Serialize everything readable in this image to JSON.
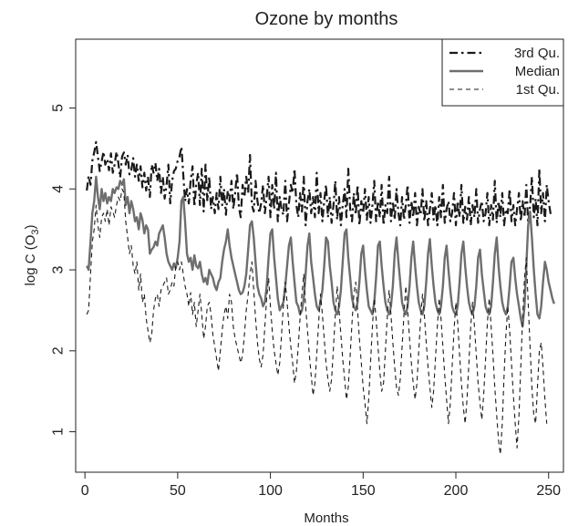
{
  "chart_data": {
    "type": "line",
    "title": "Ozone by months",
    "xlabel": "Months",
    "ylabel": {
      "main": "log C (O",
      "sub": "3",
      "close": ")"
    },
    "xlim": [
      -5,
      258
    ],
    "ylim": [
      0.5,
      5.85
    ],
    "x_ticks": [
      0,
      50,
      100,
      150,
      200,
      250
    ],
    "y_ticks": [
      1,
      2,
      3,
      4,
      5
    ],
    "grid": false,
    "legend_position": "top-right",
    "series": [
      {
        "name": "3rd Qu.",
        "color": "#1a1a1a",
        "style": "dash-dot",
        "values": [
          3.98,
          4.16,
          4.05,
          4.35,
          4.45,
          4.58,
          4.4,
          4.22,
          4.34,
          4.46,
          4.3,
          4.37,
          4.23,
          4.44,
          4.2,
          4.3,
          4.46,
          4.32,
          4.14,
          4.4,
          4.45,
          4.3,
          4.42,
          4.18,
          4.23,
          4.38,
          4.15,
          4.3,
          4.1,
          4.28,
          4.02,
          4.2,
          3.98,
          4.15,
          3.9,
          4.3,
          4.2,
          4.32,
          4.1,
          4.25,
          3.95,
          4.15,
          3.88,
          4.05,
          4.3,
          3.82,
          4.1,
          4.22,
          4.25,
          4.35,
          4.4,
          4.52,
          4.18,
          3.85,
          4.0,
          3.82,
          4.1,
          4.28,
          3.78,
          4.05,
          4.2,
          3.8,
          4.25,
          3.72,
          4.3,
          3.85,
          4.15,
          3.75,
          3.9,
          3.7,
          3.95,
          3.75,
          4.15,
          3.8,
          4.0,
          3.68,
          3.98,
          3.85,
          4.1,
          3.75,
          3.95,
          4.2,
          3.78,
          3.65,
          4.05,
          3.9,
          4.15,
          3.95,
          4.42,
          3.8,
          3.72,
          4.1,
          3.85,
          3.7,
          3.82,
          4.05,
          3.7,
          3.9,
          4.15,
          3.65,
          4.05,
          3.75,
          4.2,
          3.6,
          3.9,
          3.75,
          3.68,
          4.1,
          3.6,
          3.82,
          4.05,
          3.95,
          4.25,
          3.8,
          3.65,
          3.95,
          3.72,
          4.15,
          3.55,
          3.85,
          4.0,
          3.7,
          3.9,
          3.65,
          4.2,
          3.7,
          3.95,
          3.6,
          3.85,
          4.05,
          3.65,
          3.9,
          3.58,
          3.8,
          4.1,
          3.62,
          3.9,
          3.55,
          3.8,
          4.0,
          3.65,
          4.25,
          3.75,
          3.6,
          3.95,
          3.68,
          4.05,
          3.55,
          3.85,
          3.7,
          4.0,
          3.62,
          3.9,
          3.58,
          3.8,
          4.1,
          3.6,
          3.85,
          3.65,
          4.05,
          3.55,
          3.8,
          3.7,
          4.15,
          3.6,
          3.85,
          3.62,
          4.0,
          3.7,
          3.55,
          3.9,
          3.62,
          3.8,
          4.05,
          3.58,
          3.85,
          3.65,
          3.95,
          3.55,
          3.78,
          3.68,
          4.0,
          3.6,
          3.85,
          3.55,
          3.75,
          3.95,
          3.62,
          3.8,
          3.55,
          3.9,
          3.65,
          4.05,
          3.58,
          3.75,
          3.85,
          3.6,
          3.7,
          3.95,
          3.55,
          3.85,
          3.65,
          4.05,
          3.58,
          3.78,
          3.62,
          3.9,
          3.55,
          3.8,
          3.65,
          4.0,
          3.58,
          3.75,
          3.85,
          3.6,
          3.7,
          3.95,
          3.55,
          3.8,
          3.62,
          4.1,
          3.58,
          3.85,
          3.65,
          3.95,
          3.55,
          3.75,
          3.7,
          4.0,
          3.6,
          3.8,
          3.55,
          3.75,
          3.95,
          3.6,
          3.85,
          3.65,
          4.05,
          3.58,
          3.78,
          4.15,
          3.65,
          3.88,
          3.55,
          4.25,
          3.7,
          3.95,
          3.6,
          4.05,
          3.85,
          3.7,
          3.65
        ]
      },
      {
        "name": "Median",
        "color": "#6e6e6e",
        "style": "solid",
        "values": [
          3.05,
          3.0,
          3.35,
          3.7,
          3.85,
          4.15,
          3.9,
          3.75,
          4.0,
          3.85,
          3.95,
          3.82,
          3.9,
          3.85,
          4.0,
          3.95,
          4.02,
          4.0,
          4.1,
          4.05,
          4.12,
          3.8,
          3.9,
          3.7,
          3.85,
          3.75,
          3.6,
          3.65,
          3.5,
          3.7,
          3.62,
          3.45,
          3.55,
          3.5,
          3.2,
          3.25,
          3.28,
          3.35,
          3.3,
          3.45,
          3.5,
          3.55,
          3.4,
          3.2,
          3.1,
          3.05,
          3.0,
          3.08,
          3.02,
          3.15,
          3.35,
          3.85,
          3.9,
          3.6,
          3.2,
          3.1,
          3.15,
          3.0,
          3.18,
          3.05,
          3.02,
          3.1,
          2.95,
          2.85,
          2.9,
          2.82,
          3.0,
          2.95,
          2.9,
          2.8,
          2.75,
          2.85,
          2.9,
          3.1,
          3.25,
          3.35,
          3.5,
          3.3,
          3.15,
          3.05,
          2.95,
          2.85,
          2.75,
          2.7,
          2.72,
          2.8,
          2.95,
          3.25,
          3.55,
          3.6,
          3.4,
          3.1,
          2.8,
          2.7,
          2.65,
          2.55,
          2.6,
          2.8,
          3.15,
          3.45,
          3.5,
          3.15,
          2.9,
          2.65,
          2.5,
          2.55,
          2.6,
          2.8,
          3.05,
          3.3,
          3.4,
          3.1,
          2.85,
          2.6,
          2.55,
          2.45,
          2.5,
          2.65,
          2.95,
          3.3,
          3.45,
          3.1,
          2.9,
          2.7,
          2.55,
          2.5,
          2.6,
          2.75,
          3.05,
          3.4,
          3.35,
          3.05,
          2.85,
          2.6,
          2.5,
          2.45,
          2.55,
          2.75,
          3.1,
          3.45,
          3.5,
          3.15,
          2.9,
          2.65,
          2.55,
          2.5,
          2.6,
          2.85,
          3.2,
          3.3,
          3.0,
          2.75,
          2.55,
          2.5,
          2.45,
          2.6,
          2.9,
          3.3,
          3.35,
          3.05,
          2.8,
          2.6,
          2.5,
          2.45,
          2.55,
          2.8,
          3.2,
          3.4,
          3.1,
          2.85,
          2.6,
          2.5,
          2.45,
          2.55,
          2.8,
          3.15,
          3.35,
          3.05,
          2.8,
          2.6,
          2.5,
          2.45,
          2.55,
          2.85,
          3.2,
          3.38,
          3.05,
          2.8,
          2.6,
          2.5,
          2.45,
          2.55,
          2.8,
          3.15,
          3.3,
          3.0,
          2.75,
          2.55,
          2.48,
          2.45,
          2.55,
          2.85,
          3.2,
          3.35,
          3.05,
          2.8,
          2.6,
          2.5,
          2.45,
          2.55,
          2.8,
          3.15,
          3.25,
          2.95,
          2.75,
          2.55,
          2.48,
          2.45,
          2.55,
          2.85,
          3.2,
          3.4,
          3.05,
          2.8,
          2.6,
          2.5,
          2.45,
          2.55,
          2.8,
          3.1,
          3.15,
          2.9,
          2.7,
          2.55,
          2.4,
          2.3,
          2.55,
          3.05,
          3.55,
          3.72,
          3.4,
          3.0,
          2.7,
          2.45,
          2.4,
          2.55,
          2.85,
          3.1,
          3.0,
          2.85,
          2.75,
          2.65,
          2.58
        ]
      },
      {
        "name": "1st Qu.",
        "color": "#1a1a1a",
        "style": "dashed",
        "values": [
          2.45,
          2.5,
          2.95,
          3.35,
          3.5,
          3.8,
          3.55,
          3.4,
          3.65,
          3.7,
          3.6,
          3.75,
          3.55,
          3.78,
          3.72,
          3.65,
          3.8,
          3.9,
          3.85,
          4.0,
          3.95,
          3.6,
          3.4,
          3.2,
          3.3,
          3.05,
          2.95,
          3.1,
          2.75,
          2.95,
          2.6,
          2.7,
          2.4,
          2.25,
          2.1,
          2.2,
          2.5,
          2.65,
          2.7,
          2.55,
          2.75,
          2.8,
          2.85,
          2.9,
          2.7,
          2.75,
          2.85,
          2.8,
          3.05,
          3.1,
          3.0,
          3.1,
          2.95,
          2.8,
          2.7,
          2.55,
          2.72,
          2.45,
          2.6,
          2.3,
          2.5,
          2.7,
          2.45,
          2.15,
          2.3,
          2.55,
          2.6,
          2.45,
          2.2,
          2.05,
          1.9,
          1.75,
          2.0,
          2.25,
          2.45,
          2.55,
          2.4,
          2.7,
          2.6,
          2.3,
          2.15,
          2.05,
          1.95,
          1.85,
          1.95,
          2.2,
          2.5,
          2.7,
          2.95,
          3.1,
          2.75,
          2.4,
          2.1,
          1.9,
          1.8,
          1.95,
          2.3,
          2.65,
          2.9,
          2.55,
          2.25,
          2.0,
          1.85,
          1.7,
          1.85,
          2.2,
          2.55,
          2.85,
          2.6,
          2.3,
          2.05,
          1.85,
          1.6,
          1.75,
          2.05,
          2.4,
          2.7,
          2.95,
          2.55,
          2.25,
          1.95,
          1.7,
          1.45,
          1.6,
          1.95,
          2.35,
          2.7,
          2.45,
          2.15,
          1.85,
          1.65,
          1.5,
          1.65,
          2.05,
          2.45,
          2.8,
          2.5,
          2.2,
          1.9,
          1.65,
          1.4,
          1.55,
          1.95,
          2.35,
          2.7,
          2.85,
          2.5,
          2.15,
          1.85,
          1.55,
          1.35,
          1.1,
          1.4,
          1.85,
          2.3,
          2.65,
          2.4,
          2.05,
          1.75,
          1.5,
          1.6,
          2.0,
          2.4,
          2.75,
          2.45,
          2.1,
          1.8,
          1.55,
          1.45,
          1.65,
          2.05,
          2.45,
          2.8,
          2.5,
          2.15,
          1.85,
          1.6,
          1.4,
          1.6,
          2.0,
          2.4,
          2.7,
          2.45,
          2.1,
          1.8,
          1.55,
          1.3,
          1.5,
          1.9,
          2.3,
          2.65,
          2.4,
          2.05,
          1.7,
          1.4,
          1.1,
          1.35,
          1.8,
          2.25,
          2.6,
          2.35,
          1.95,
          1.6,
          1.3,
          1.1,
          1.4,
          1.85,
          2.3,
          2.6,
          2.3,
          1.95,
          1.6,
          1.35,
          1.15,
          1.45,
          1.9,
          2.35,
          2.65,
          2.3,
          1.95,
          1.55,
          1.2,
          0.9,
          0.72,
          1.1,
          1.7,
          2.2,
          2.55,
          2.25,
          1.85,
          1.45,
          1.1,
          0.8,
          1.2,
          1.8,
          2.4,
          2.9,
          3.15,
          2.6,
          2.05,
          1.55,
          1.2,
          1.1,
          1.55,
          2.0,
          2.1,
          1.8,
          1.4,
          1.1
        ]
      }
    ]
  }
}
